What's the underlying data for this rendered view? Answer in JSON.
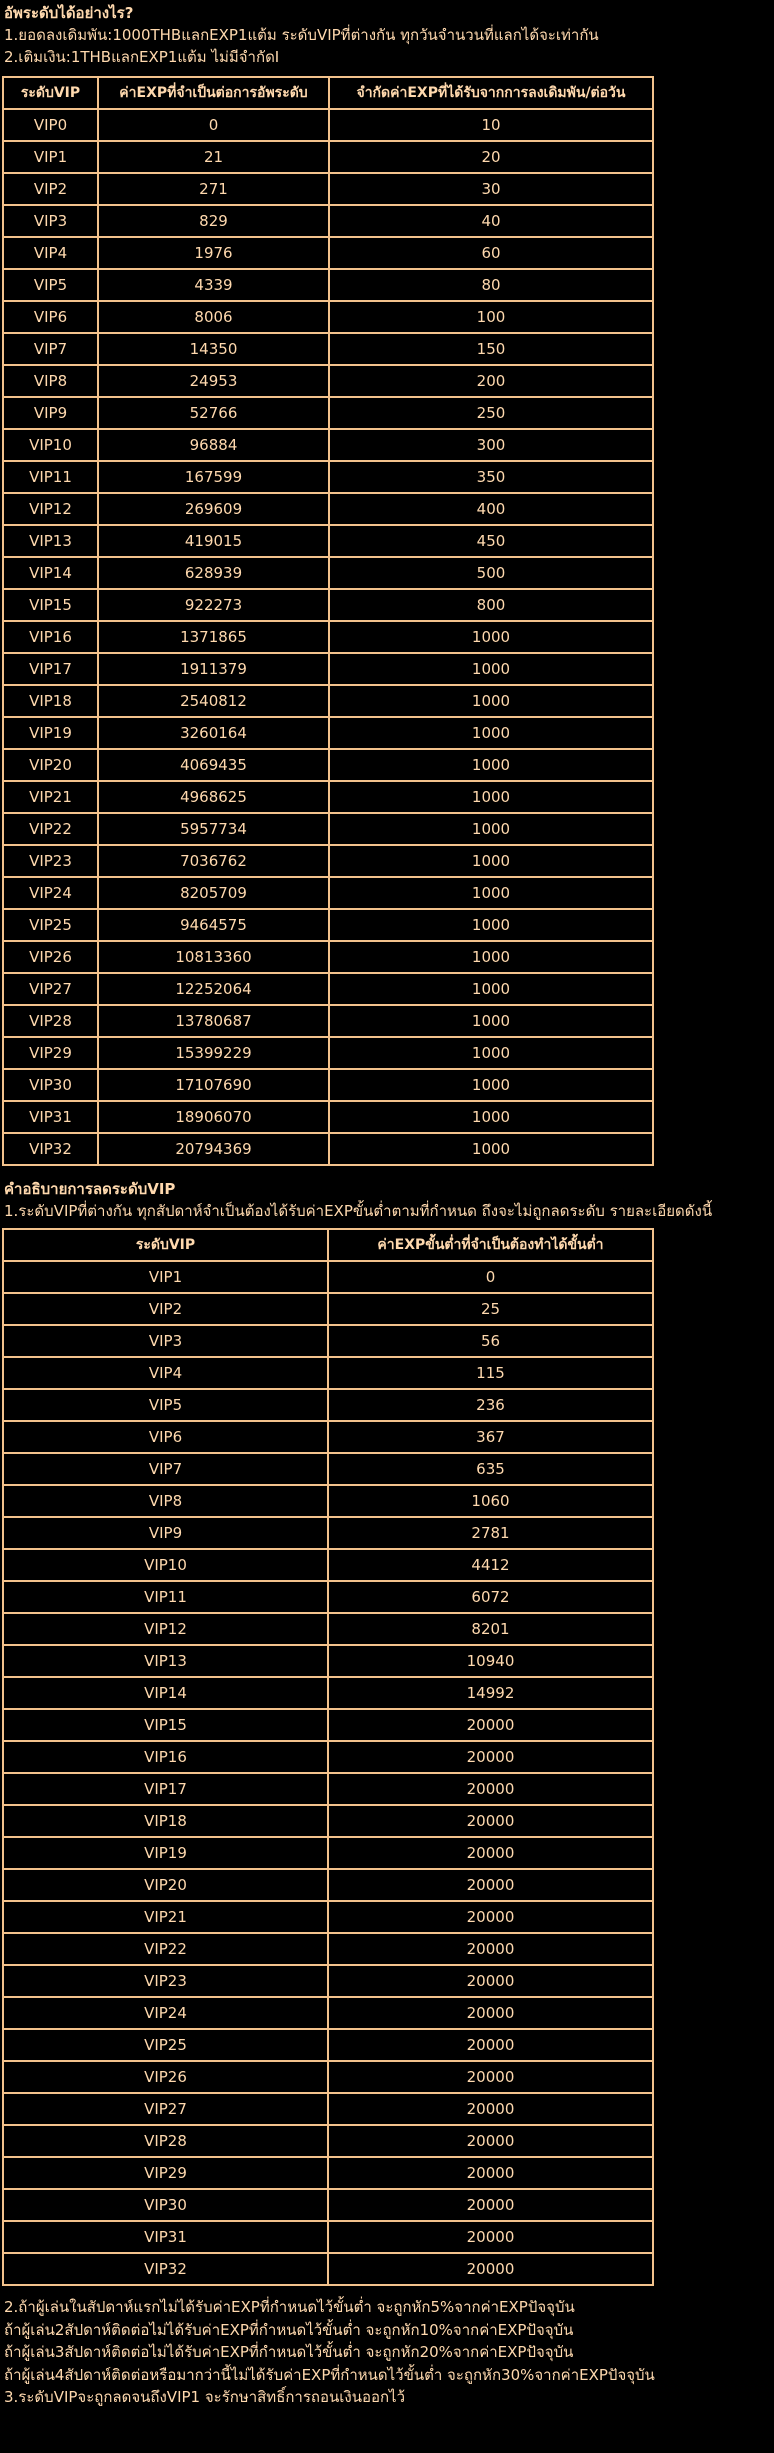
{
  "page": {
    "bg_color": "#000000",
    "text_color": "#FFD9AE",
    "border_color": "#F2C28C"
  },
  "intro": {
    "title": "อัพระดับได้อย่างไร?",
    "lines": [
      "1.ยอดลงเดิมพัน:1000THBแลกEXP1แต้ม ระดับVIPที่ต่างกัน ทุกวันจำนวนที่แลกได้จะเท่ากัน",
      "2.เติมเงิน:1THBแลกEXP1แต้ม ไม่มีจำกัดI"
    ]
  },
  "levelup_table": {
    "headers": [
      "ระดับVIP",
      "ค่าEXPที่จำเป็นต่อการอัพระดับ",
      "จำกัดค่าEXPที่ได้รับจากการลงเดิมพัน/ต่อวัน"
    ],
    "rows": [
      [
        "VIP0",
        "0",
        "10"
      ],
      [
        "VIP1",
        "21",
        "20"
      ],
      [
        "VIP2",
        "271",
        "30"
      ],
      [
        "VIP3",
        "829",
        "40"
      ],
      [
        "VIP4",
        "1976",
        "60"
      ],
      [
        "VIP5",
        "4339",
        "80"
      ],
      [
        "VIP6",
        "8006",
        "100"
      ],
      [
        "VIP7",
        "14350",
        "150"
      ],
      [
        "VIP8",
        "24953",
        "200"
      ],
      [
        "VIP9",
        "52766",
        "250"
      ],
      [
        "VIP10",
        "96884",
        "300"
      ],
      [
        "VIP11",
        "167599",
        "350"
      ],
      [
        "VIP12",
        "269609",
        "400"
      ],
      [
        "VIP13",
        "419015",
        "450"
      ],
      [
        "VIP14",
        "628939",
        "500"
      ],
      [
        "VIP15",
        "922273",
        "800"
      ],
      [
        "VIP16",
        "1371865",
        "1000"
      ],
      [
        "VIP17",
        "1911379",
        "1000"
      ],
      [
        "VIP18",
        "2540812",
        "1000"
      ],
      [
        "VIP19",
        "3260164",
        "1000"
      ],
      [
        "VIP20",
        "4069435",
        "1000"
      ],
      [
        "VIP21",
        "4968625",
        "1000"
      ],
      [
        "VIP22",
        "5957734",
        "1000"
      ],
      [
        "VIP23",
        "7036762",
        "1000"
      ],
      [
        "VIP24",
        "8205709",
        "1000"
      ],
      [
        "VIP25",
        "9464575",
        "1000"
      ],
      [
        "VIP26",
        "10813360",
        "1000"
      ],
      [
        "VIP27",
        "12252064",
        "1000"
      ],
      [
        "VIP28",
        "13780687",
        "1000"
      ],
      [
        "VIP29",
        "15399229",
        "1000"
      ],
      [
        "VIP30",
        "17107690",
        "1000"
      ],
      [
        "VIP31",
        "18906070",
        "1000"
      ],
      [
        "VIP32",
        "20794369",
        "1000"
      ]
    ]
  },
  "demotion": {
    "title": "คำอธิบายการลดระดับVIP",
    "line": "1.ระดับVIPที่ต่างกัน ทุกสัปดาห์จำเป็นต้องได้รับค่าEXPขั้นต่ำตามที่กำหนด ถึงจะไม่ถูกลดระดับ รายละเอียดดังนี้"
  },
  "demotion_table": {
    "headers": [
      "ระดับVIP",
      "ค่าEXPขั้นต่ำที่จำเป็นต้องทำได้ขั้นต่ำ"
    ],
    "rows": [
      [
        "VIP1",
        "0"
      ],
      [
        "VIP2",
        "25"
      ],
      [
        "VIP3",
        "56"
      ],
      [
        "VIP4",
        "115"
      ],
      [
        "VIP5",
        "236"
      ],
      [
        "VIP6",
        "367"
      ],
      [
        "VIP7",
        "635"
      ],
      [
        "VIP8",
        "1060"
      ],
      [
        "VIP9",
        "2781"
      ],
      [
        "VIP10",
        "4412"
      ],
      [
        "VIP11",
        "6072"
      ],
      [
        "VIP12",
        "8201"
      ],
      [
        "VIP13",
        "10940"
      ],
      [
        "VIP14",
        "14992"
      ],
      [
        "VIP15",
        "20000"
      ],
      [
        "VIP16",
        "20000"
      ],
      [
        "VIP17",
        "20000"
      ],
      [
        "VIP18",
        "20000"
      ],
      [
        "VIP19",
        "20000"
      ],
      [
        "VIP20",
        "20000"
      ],
      [
        "VIP21",
        "20000"
      ],
      [
        "VIP22",
        "20000"
      ],
      [
        "VIP23",
        "20000"
      ],
      [
        "VIP24",
        "20000"
      ],
      [
        "VIP25",
        "20000"
      ],
      [
        "VIP26",
        "20000"
      ],
      [
        "VIP27",
        "20000"
      ],
      [
        "VIP28",
        "20000"
      ],
      [
        "VIP29",
        "20000"
      ],
      [
        "VIP30",
        "20000"
      ],
      [
        "VIP31",
        "20000"
      ],
      [
        "VIP32",
        "20000"
      ]
    ]
  },
  "footer": {
    "lines": [
      "2.ถ้าผู้เล่นในสัปดาห์แรกไม่ได้รับค่าEXPที่กำหนดไว้ขั้นต่ำ จะถูกหัก5%จากค่าEXPปัจจุบัน",
      "ถ้าผู้เล่น2สัปดาห์ติดต่อไม่ได้รับค่าEXPที่กำหนดไว้ขั้นต่ำ จะถูกหัก10%จากค่าEXPปัจจุบัน",
      "ถ้าผู้เล่น3สัปดาห์ติดต่อไม่ได้รับค่าEXPที่กำหนดไว้ขั้นต่ำ จะถูกหัก20%จากค่าEXPปัจจุบัน",
      "ถ้าผู้เล่น4สัปดาห์ติดต่อหรือมากว่านี้ไม่ได้รับค่าEXPที่กำหนดไว้ขั้นต่ำ จะถูกหัก30%จากค่าEXPปัจจุบัน",
      "3.ระดับVIPจะถูกลดจนถึงVIP1 จะรักษาสิทธิ์การถอนเงินออกไว้"
    ]
  }
}
